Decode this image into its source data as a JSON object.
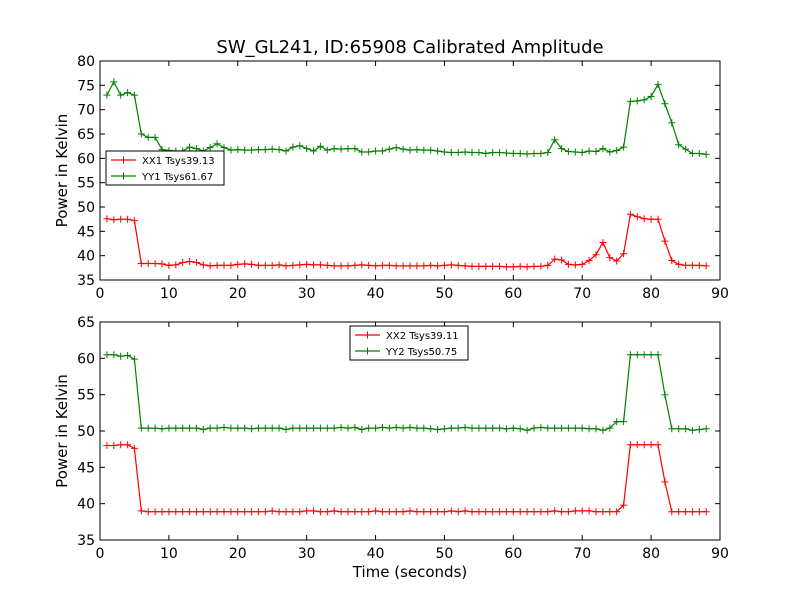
{
  "title": "SW_GL241, ID:65908 Calibrated Amplitude",
  "colors": {
    "red": "#ff0000",
    "green": "#008000"
  },
  "chart_data": [
    {
      "type": "line",
      "xlabel": "",
      "ylabel": "Power in Kelvin",
      "xlim": [
        0,
        90
      ],
      "ylim": [
        35,
        80
      ],
      "xticks": [
        0,
        10,
        20,
        30,
        40,
        50,
        60,
        70,
        80,
        90
      ],
      "yticks": [
        35,
        40,
        45,
        50,
        55,
        60,
        65,
        70,
        75,
        80
      ],
      "legend_position": "center-left",
      "x": [
        1,
        2,
        3,
        4,
        5,
        6,
        7,
        8,
        9,
        10,
        11,
        12,
        13,
        14,
        15,
        16,
        17,
        18,
        19,
        20,
        21,
        22,
        23,
        24,
        25,
        26,
        27,
        28,
        29,
        30,
        31,
        32,
        33,
        34,
        35,
        36,
        37,
        38,
        39,
        40,
        41,
        42,
        43,
        44,
        45,
        46,
        47,
        48,
        49,
        50,
        51,
        52,
        53,
        54,
        55,
        56,
        57,
        58,
        59,
        60,
        61,
        62,
        63,
        64,
        65,
        66,
        67,
        68,
        69,
        70,
        71,
        72,
        73,
        74,
        75,
        76,
        77,
        78,
        79,
        80,
        81,
        82,
        83,
        84,
        85,
        86,
        87,
        88
      ],
      "series": [
        {
          "name": "XX1 Tsys39.13",
          "color": "#ff0000",
          "values": [
            47.6,
            47.4,
            47.5,
            47.5,
            47.2,
            38.4,
            38.4,
            38.4,
            38.3,
            38.0,
            38.1,
            38.6,
            38.8,
            38.6,
            38.1,
            37.9,
            38.0,
            38.0,
            38.0,
            38.2,
            38.3,
            38.2,
            38.0,
            38.0,
            38.0,
            38.1,
            37.9,
            38.0,
            38.1,
            38.2,
            38.1,
            38.1,
            38.0,
            37.9,
            37.9,
            37.9,
            38.0,
            38.1,
            38.0,
            37.9,
            38.0,
            38.0,
            37.9,
            37.9,
            37.9,
            37.9,
            37.9,
            38.0,
            37.9,
            38.0,
            38.1,
            38.0,
            37.9,
            37.8,
            37.8,
            37.8,
            37.8,
            37.8,
            37.7,
            37.7,
            37.8,
            37.7,
            37.8,
            37.8,
            38.0,
            39.3,
            39.1,
            38.2,
            38.1,
            38.2,
            39.0,
            40.2,
            42.7,
            39.6,
            38.9,
            40.4,
            48.5,
            48.0,
            47.6,
            47.5,
            47.5,
            43.0,
            39.0,
            38.2,
            38.0,
            38.0,
            38.0,
            37.9
          ]
        },
        {
          "name": "YY1 Tsys61.67",
          "color": "#008000",
          "values": [
            73.0,
            75.7,
            73.0,
            73.5,
            73.0,
            65.0,
            64.3,
            64.3,
            61.8,
            61.6,
            61.5,
            61.5,
            62.3,
            62.0,
            61.5,
            62.2,
            63.0,
            62.2,
            61.7,
            61.8,
            61.7,
            61.7,
            61.8,
            61.8,
            61.9,
            61.8,
            61.5,
            62.3,
            62.6,
            62.0,
            61.5,
            62.5,
            61.7,
            62.0,
            61.9,
            62.0,
            62.0,
            61.3,
            61.3,
            61.5,
            61.5,
            61.9,
            62.2,
            61.9,
            61.7,
            61.8,
            61.7,
            61.7,
            61.5,
            61.3,
            61.2,
            61.2,
            61.3,
            61.2,
            61.2,
            61.0,
            61.2,
            61.2,
            61.1,
            61.0,
            61.0,
            60.9,
            61.0,
            61.0,
            61.2,
            63.8,
            62.0,
            61.4,
            61.3,
            61.2,
            61.5,
            61.4,
            62.0,
            61.3,
            61.6,
            62.3,
            71.7,
            71.8,
            72.0,
            72.7,
            75.2,
            71.2,
            67.3,
            62.8,
            61.9,
            61.0,
            61.0,
            60.8
          ]
        }
      ]
    },
    {
      "type": "line",
      "xlabel": "Time (seconds)",
      "ylabel": "Power in Kelvin",
      "xlim": [
        0,
        90
      ],
      "ylim": [
        35,
        65
      ],
      "xticks": [
        0,
        10,
        20,
        30,
        40,
        50,
        60,
        70,
        80,
        90
      ],
      "yticks": [
        35,
        40,
        45,
        50,
        55,
        60,
        65
      ],
      "legend_position": "upper-center",
      "x": [
        1,
        2,
        3,
        4,
        5,
        6,
        7,
        8,
        9,
        10,
        11,
        12,
        13,
        14,
        15,
        16,
        17,
        18,
        19,
        20,
        21,
        22,
        23,
        24,
        25,
        26,
        27,
        28,
        29,
        30,
        31,
        32,
        33,
        34,
        35,
        36,
        37,
        38,
        39,
        40,
        41,
        42,
        43,
        44,
        45,
        46,
        47,
        48,
        49,
        50,
        51,
        52,
        53,
        54,
        55,
        56,
        57,
        58,
        59,
        60,
        61,
        62,
        63,
        64,
        65,
        66,
        67,
        68,
        69,
        70,
        71,
        72,
        73,
        74,
        75,
        76,
        77,
        78,
        79,
        80,
        81,
        82,
        83,
        84,
        85,
        86,
        87,
        88
      ],
      "series": [
        {
          "name": "XX2 Tsys39.11",
          "color": "#ff0000",
          "values": [
            48.0,
            48.0,
            48.1,
            48.1,
            47.6,
            39.0,
            38.9,
            38.9,
            38.9,
            38.9,
            38.9,
            38.9,
            38.9,
            38.9,
            38.9,
            38.9,
            38.9,
            38.9,
            38.9,
            38.9,
            38.9,
            38.9,
            38.9,
            38.9,
            39.0,
            38.9,
            38.9,
            38.9,
            38.9,
            39.0,
            39.0,
            38.9,
            38.9,
            39.0,
            38.9,
            38.9,
            38.9,
            38.9,
            38.9,
            39.0,
            38.9,
            38.9,
            38.9,
            38.9,
            39.0,
            38.9,
            38.9,
            38.9,
            38.9,
            38.9,
            39.0,
            38.9,
            39.0,
            38.9,
            38.9,
            38.9,
            38.9,
            38.9,
            38.9,
            38.9,
            38.9,
            38.9,
            38.9,
            38.9,
            38.9,
            39.0,
            38.9,
            38.9,
            39.0,
            39.0,
            39.0,
            38.9,
            38.9,
            38.9,
            38.9,
            39.8,
            48.1,
            48.1,
            48.1,
            48.1,
            48.1,
            43.0,
            38.9,
            38.9,
            38.9,
            38.9,
            38.9,
            38.9
          ]
        },
        {
          "name": "YY2 Tsys50.75",
          "color": "#008000",
          "values": [
            60.5,
            60.5,
            60.3,
            60.4,
            59.9,
            50.4,
            50.4,
            50.4,
            50.3,
            50.4,
            50.4,
            50.4,
            50.4,
            50.4,
            50.2,
            50.4,
            50.4,
            50.5,
            50.4,
            50.4,
            50.4,
            50.3,
            50.4,
            50.4,
            50.4,
            50.4,
            50.2,
            50.4,
            50.4,
            50.4,
            50.4,
            50.4,
            50.4,
            50.4,
            50.5,
            50.4,
            50.5,
            50.2,
            50.4,
            50.4,
            50.5,
            50.4,
            50.5,
            50.4,
            50.5,
            50.4,
            50.4,
            50.3,
            50.2,
            50.3,
            50.4,
            50.4,
            50.5,
            50.4,
            50.4,
            50.4,
            50.4,
            50.4,
            50.3,
            50.4,
            50.3,
            50.1,
            50.4,
            50.5,
            50.4,
            50.4,
            50.4,
            50.4,
            50.4,
            50.4,
            50.3,
            50.3,
            50.1,
            50.4,
            51.3,
            51.3,
            60.5,
            60.5,
            60.5,
            60.5,
            60.5,
            55.0,
            50.3,
            50.3,
            50.3,
            50.1,
            50.2,
            50.3
          ]
        }
      ]
    }
  ]
}
